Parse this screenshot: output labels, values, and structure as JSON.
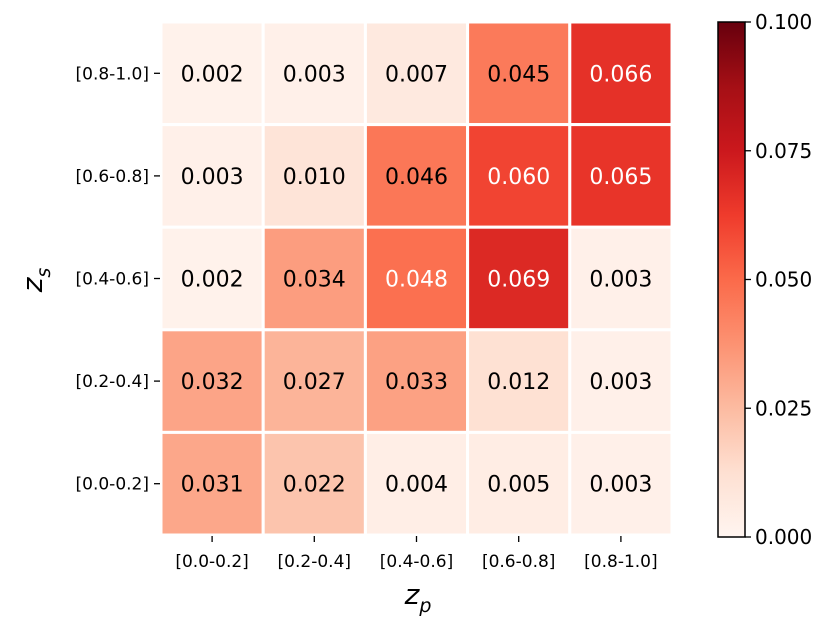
{
  "chart_data": {
    "type": "heatmap",
    "xlabel": "z",
    "xlabel_subscript": "p",
    "ylabel": "z",
    "ylabel_subscript": "s",
    "x_categories": [
      "[0.0-0.2]",
      "[0.2-0.4]",
      "[0.4-0.6]",
      "[0.6-0.8]",
      "[0.8-1.0]"
    ],
    "y_categories_top_to_bottom": [
      "[0.8-1.0]",
      "[0.6-0.8]",
      "[0.4-0.6]",
      "[0.2-0.4]",
      "[0.0-0.2]"
    ],
    "values_top_to_bottom": [
      [
        "0.002",
        "0.003",
        "0.007",
        "0.045",
        "0.066"
      ],
      [
        "0.003",
        "0.010",
        "0.046",
        "0.060",
        "0.065"
      ],
      [
        "0.002",
        "0.034",
        "0.048",
        "0.069",
        "0.003"
      ],
      [
        "0.032",
        "0.027",
        "0.033",
        "0.012",
        "0.003"
      ],
      [
        "0.031",
        "0.022",
        "0.004",
        "0.005",
        "0.003"
      ]
    ],
    "vmin": 0.0,
    "vmax": 0.1,
    "colormap": "Reds",
    "colorbar_ticks": [
      "0.000",
      "0.025",
      "0.050",
      "0.075",
      "0.100"
    ],
    "grid": false,
    "annotations": true
  }
}
